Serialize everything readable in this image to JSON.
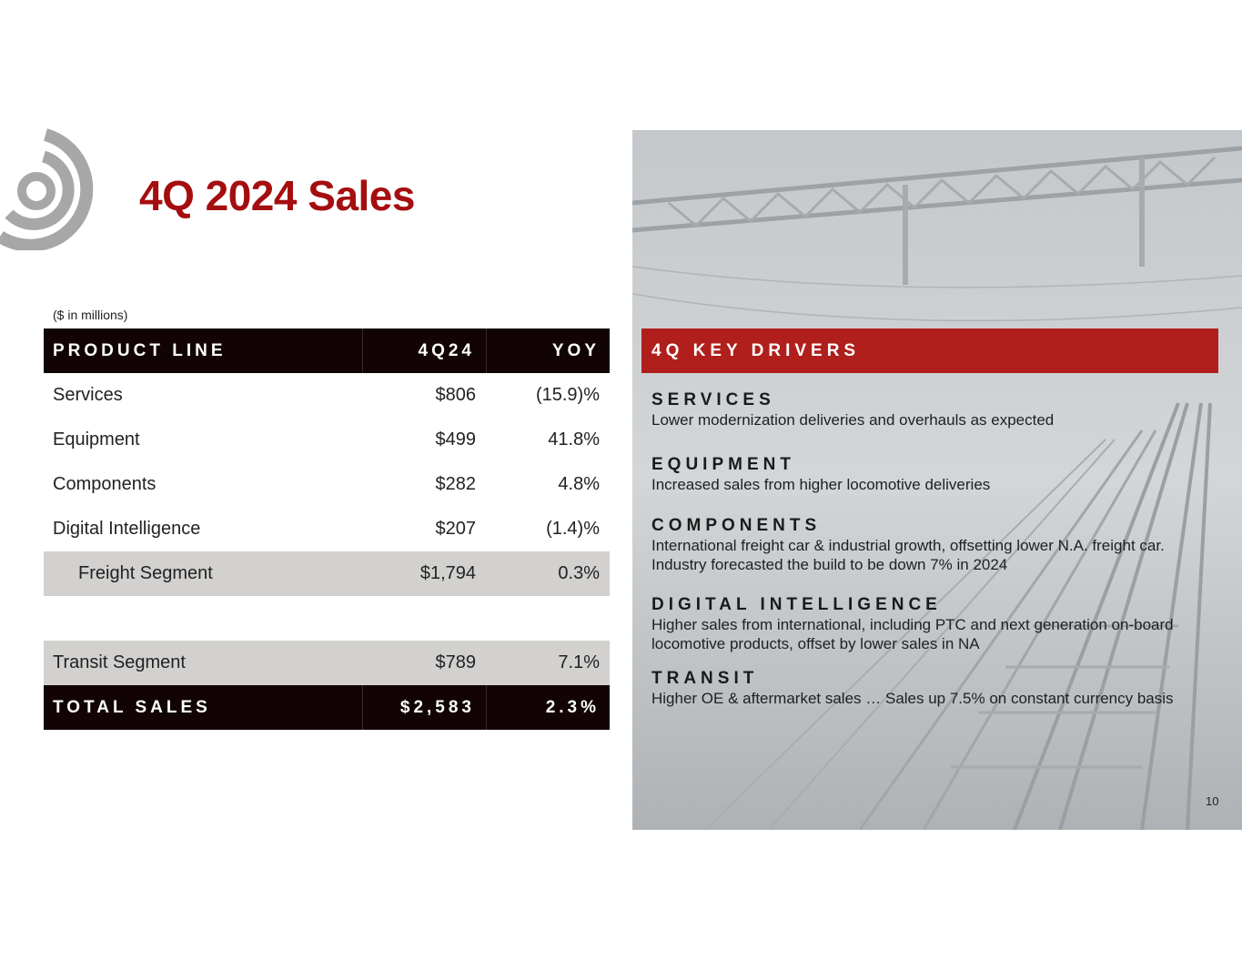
{
  "title": "4Q 2024 Sales",
  "unit_note": "($ in millions)",
  "table": {
    "headers": [
      "PRODUCT LINE",
      "4Q24",
      "YOY"
    ],
    "rows": [
      {
        "label": "Services",
        "value": "$806",
        "yoy": "(15.9)%"
      },
      {
        "label": "Equipment",
        "value": "$499",
        "yoy": "41.8%"
      },
      {
        "label": "Components",
        "value": "$282",
        "yoy": "4.8%"
      },
      {
        "label": "Digital Intelligence",
        "value": "$207",
        "yoy": "(1.4)%"
      }
    ],
    "freight": {
      "label": "Freight Segment",
      "value": "$1,794",
      "yoy": "0.3%"
    },
    "transit": {
      "label": "Transit Segment",
      "value": "$789",
      "yoy": "7.1%"
    },
    "total": {
      "label": "TOTAL SALES",
      "value": "$2,583",
      "yoy": "2.3%"
    }
  },
  "drivers": {
    "header": "4Q KEY DRIVERS",
    "items": [
      {
        "title": "SERVICES",
        "text": "Lower modernization deliveries and overhauls as expected"
      },
      {
        "title": "EQUIPMENT",
        "text": "Increased sales from higher locomotive deliveries"
      },
      {
        "title": "COMPONENTS",
        "text": "International freight car & industrial growth, offsetting lower N.A. freight car.  Industry forecasted the build to be down 7% in 2024"
      },
      {
        "title": "DIGITAL INTELLIGENCE",
        "text": "Higher sales from international, including PTC and next generation on-board locomotive products, offset by lower sales in NA"
      },
      {
        "title": "TRANSIT",
        "text": "Higher OE & aftermarket sales … Sales up 7.5% on constant currency basis"
      }
    ]
  },
  "page_number": "10",
  "colors": {
    "title_red": "#a50e10",
    "header_red": "#b01f1c",
    "dark": "#120404",
    "gray_row": "#d2d1cf"
  }
}
